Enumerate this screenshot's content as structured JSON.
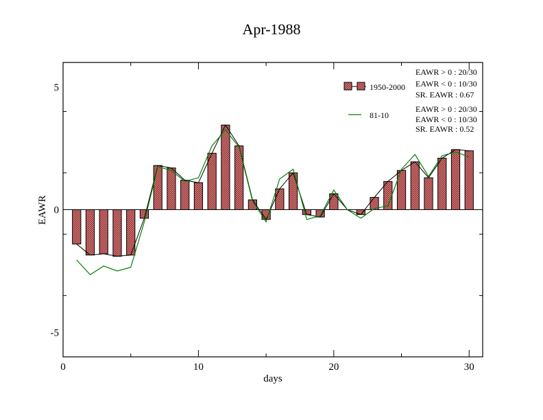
{
  "chart_data": {
    "type": "bar",
    "title": "Apr-1988",
    "xlabel": "days",
    "ylabel": "EAWR",
    "xlim": [
      0,
      31
    ],
    "ylim": [
      -6,
      6
    ],
    "x_ticks": [
      0,
      10,
      20,
      30
    ],
    "y_ticks": [
      -5,
      0,
      5
    ],
    "x_tick_labels": [
      "0",
      "10",
      "20",
      "30"
    ],
    "y_tick_labels": [
      "-5",
      "0",
      "5"
    ],
    "grid": false,
    "legend_position": "top-right",
    "x": [
      1,
      2,
      3,
      4,
      5,
      6,
      7,
      8,
      9,
      10,
      11,
      12,
      13,
      14,
      15,
      16,
      17,
      18,
      19,
      20,
      21,
      22,
      23,
      24,
      25,
      26,
      27,
      28,
      29,
      30
    ],
    "series": [
      {
        "name": "1950-2000",
        "kind": "bar",
        "color": "#f08080",
        "values": [
          -1.4,
          -1.85,
          -1.8,
          -1.9,
          -1.85,
          -0.35,
          1.8,
          1.7,
          1.2,
          1.1,
          2.3,
          3.45,
          2.6,
          0.4,
          -0.4,
          0.85,
          1.5,
          -0.2,
          -0.3,
          0.65,
          0.0,
          -0.2,
          0.5,
          1.15,
          1.6,
          1.95,
          1.3,
          2.1,
          2.45,
          2.4
        ]
      },
      {
        "name": "81-10",
        "kind": "line",
        "color": "#008000",
        "values": [
          -2.05,
          -2.65,
          -2.3,
          -2.5,
          -2.35,
          -0.5,
          1.75,
          1.6,
          1.15,
          1.3,
          2.6,
          3.25,
          2.55,
          0.35,
          -0.5,
          1.25,
          1.65,
          -0.4,
          -0.25,
          0.8,
          0.0,
          -0.35,
          0.05,
          0.15,
          1.65,
          2.25,
          1.35,
          2.2,
          2.35,
          2.15
        ]
      }
    ],
    "legend": [
      {
        "label": "1950-2000",
        "stats": [
          "EAWR > 0 : 20/30",
          "EAWR < 0 : 10/30",
          "SR. EAWR :  0.67"
        ]
      },
      {
        "label": "81-10",
        "stats": [
          "EAWR > 0 : 20/30",
          "EAWR < 0 : 10/30",
          "SR. EAWR :  0.52"
        ]
      }
    ]
  }
}
